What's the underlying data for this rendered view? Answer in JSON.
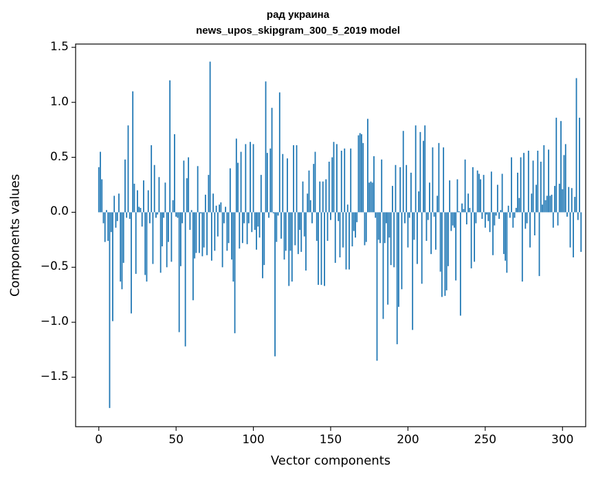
{
  "chart_data": {
    "type": "bar",
    "title_line1": "рад украина",
    "title_line2": "news_upos_skipgram_300_5_2019 model",
    "xlabel": "Vector components",
    "ylabel": "Components values",
    "xlim": [
      -15,
      315
    ],
    "ylim": [
      -1.95,
      1.53
    ],
    "x_ticks": [
      0,
      50,
      100,
      150,
      200,
      250,
      300
    ],
    "x_tick_labels": [
      "0",
      "50",
      "100",
      "150",
      "200",
      "250",
      "300"
    ],
    "y_ticks": [
      -1.5,
      -1.0,
      -0.5,
      0.0,
      0.5,
      1.0,
      1.5
    ],
    "y_tick_labels": [
      "−1.5",
      "−1.0",
      "−0.5",
      "0.0",
      "0.5",
      "1.0",
      "1.5"
    ],
    "bar_color": "#1f77b4",
    "series_name": "components",
    "values": [
      0.41,
      0.55,
      0.3,
      -0.1,
      -0.27,
      0.02,
      -0.26,
      -1.78,
      -0.18,
      -0.99,
      0.15,
      -0.14,
      -0.08,
      0.17,
      -0.63,
      -0.7,
      -0.46,
      0.48,
      -0.05,
      0.79,
      -0.06,
      -0.92,
      1.1,
      0.26,
      -0.56,
      0.2,
      0.05,
      0.04,
      -0.13,
      0.29,
      -0.57,
      -0.63,
      0.2,
      -0.1,
      0.61,
      -0.47,
      0.43,
      -0.05,
      -0.02,
      0.32,
      -0.55,
      -0.31,
      -0.05,
      0.27,
      -0.5,
      -0.27,
      1.2,
      -0.45,
      0.11,
      0.71,
      -0.04,
      -0.05,
      -1.09,
      -0.49,
      -0.1,
      0.47,
      -1.22,
      0.31,
      0.5,
      -0.16,
      0.02,
      -0.8,
      -0.42,
      -0.37,
      0.42,
      -0.37,
      -0.01,
      -0.4,
      -0.32,
      0.16,
      -0.39,
      0.34,
      1.37,
      -0.44,
      0.17,
      -0.35,
      0.06,
      -0.22,
      0.07,
      0.09,
      -0.5,
      -0.1,
      0.05,
      -0.35,
      -0.28,
      0.4,
      -0.43,
      -0.63,
      -1.1,
      0.67,
      0.45,
      -0.33,
      0.55,
      -0.28,
      -0.1,
      0.62,
      -0.29,
      -0.1,
      0.64,
      -0.18,
      0.62,
      -0.16,
      -0.34,
      -0.13,
      -0.23,
      0.34,
      -0.6,
      -0.48,
      1.19,
      0.54,
      -0.05,
      0.58,
      0.95,
      -0.01,
      -1.31,
      -0.27,
      -0.03,
      1.09,
      -0.24,
      0.53,
      -0.43,
      -0.35,
      0.49,
      -0.67,
      -0.35,
      -0.63,
      0.61,
      -0.3,
      0.61,
      -0.38,
      -0.16,
      -0.36,
      0.28,
      -0.22,
      -0.53,
      0.17,
      0.38,
      0.11,
      -0.1,
      0.44,
      0.55,
      -0.26,
      -0.66,
      0.28,
      -0.66,
      0.28,
      -0.67,
      0.3,
      -0.26,
      0.46,
      -0.07,
      0.5,
      0.64,
      -0.46,
      0.62,
      -0.08,
      -0.41,
      0.56,
      -0.32,
      0.58,
      -0.52,
      0.07,
      -0.52,
      0.58,
      -0.31,
      -0.17,
      -0.23,
      -0.09,
      0.7,
      0.72,
      0.71,
      0.63,
      -0.3,
      -0.27,
      0.85,
      0.27,
      0.28,
      0.27,
      0.51,
      -0.05,
      -1.35,
      -0.25,
      -0.28,
      0.48,
      -0.97,
      -0.28,
      -0.1,
      -0.84,
      -0.23,
      -0.48,
      0.24,
      -0.5,
      0.43,
      -1.2,
      -0.86,
      0.41,
      -0.7,
      0.74,
      -0.1,
      0.43,
      -0.32,
      -0.05,
      0.36,
      -1.07,
      -0.25,
      0.79,
      -0.47,
      0.19,
      0.73,
      -0.65,
      0.65,
      0.79,
      -0.26,
      -0.07,
      0.27,
      -0.38,
      0.59,
      -0.04,
      -0.34,
      0.15,
      0.63,
      -0.54,
      -0.77,
      0.59,
      -0.76,
      -0.71,
      -0.49,
      0.29,
      -0.17,
      -0.12,
      -0.14,
      -0.62,
      0.3,
      0.01,
      -0.94,
      0.08,
      0.03,
      0.48,
      -0.11,
      0.17,
      0.04,
      -0.51,
      0.41,
      -0.45,
      -0.1,
      0.38,
      0.35,
      0.3,
      -0.06,
      0.34,
      -0.14,
      -0.02,
      -0.08,
      -0.18,
      0.37,
      -0.39,
      -0.12,
      -0.03,
      0.25,
      -0.06,
      0.02,
      0.35,
      -0.38,
      -0.44,
      -0.55,
      0.06,
      -0.05,
      0.5,
      -0.14,
      -0.05,
      0.04,
      0.36,
      0.13,
      0.5,
      -0.63,
      0.54,
      -0.15,
      -0.1,
      0.56,
      -0.32,
      0.17,
      0.47,
      -0.21,
      0.25,
      0.56,
      -0.58,
      0.46,
      0.07,
      0.61,
      0.11,
      0.15,
      0.57,
      0.15,
      0.16,
      -0.14,
      0.24,
      0.86,
      -0.12,
      0.26,
      0.83,
      0.21,
      0.52,
      0.62,
      -0.04,
      0.23,
      -0.32,
      0.22,
      -0.41,
      0.14,
      1.22,
      -0.07,
      0.86,
      -0.36
    ]
  }
}
